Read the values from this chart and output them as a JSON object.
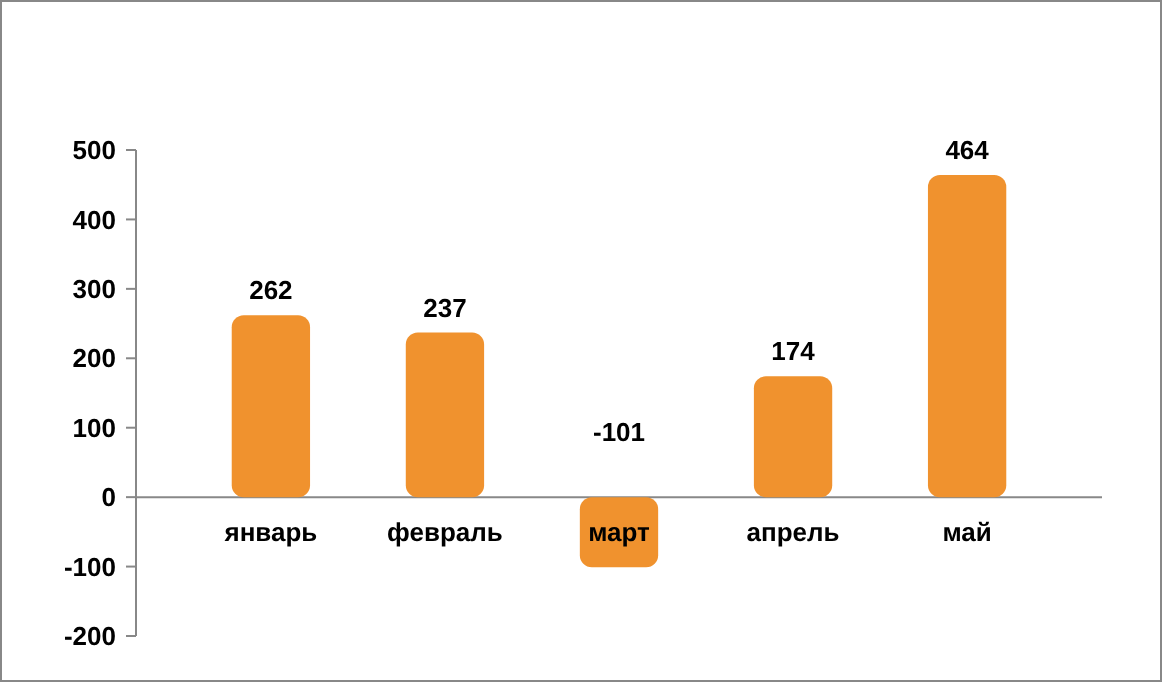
{
  "chart_data": {
    "type": "bar",
    "categories": [
      "январь",
      "февраль",
      "март",
      "апрель",
      "май"
    ],
    "values": [
      262,
      237,
      -101,
      174,
      464
    ],
    "color": "#f0922e",
    "ylim": [
      -200,
      500
    ],
    "yticks": [
      -200,
      -100,
      0,
      100,
      200,
      300,
      400,
      500
    ],
    "data_labels": true,
    "grid": false
  }
}
